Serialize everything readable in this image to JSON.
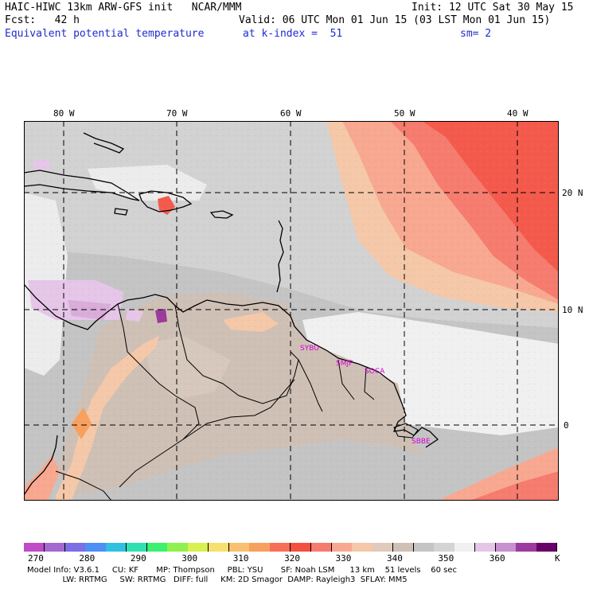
{
  "header": {
    "line1_left": "HAIC-HIWC 13km ARW-GFS init   NCAR/MMM",
    "line1_right": "Init: 12 UTC Sat 30 May 15",
    "line2_left": "Fcst:   42 h",
    "line2_right": "Valid: 06 UTC Mon 01 Jun 15 (03 LST Mon 01 Jun 15)",
    "line3_left": "Equivalent potential temperature",
    "line3_mid": "at k-index =  51",
    "line3_right": "sm= 2"
  },
  "axes": {
    "lon_labels": [
      "80 W",
      "70 W",
      "60 W",
      "50 W",
      "40 W"
    ],
    "lat_labels": [
      "20 N",
      "10 N",
      "0"
    ]
  },
  "stations": [
    "SYBU",
    "SMJP",
    "SOCA",
    "SBBE"
  ],
  "colorbar": {
    "unit": "K",
    "labels": [
      "270",
      "280",
      "290",
      "300",
      "310",
      "320",
      "330",
      "340",
      "350",
      "360"
    ],
    "colors": [
      "#c04bc6",
      "#a468d0",
      "#7c6ee4",
      "#4d8ff2",
      "#32c0e0",
      "#30e0b0",
      "#3cf070",
      "#90f050",
      "#d8f050",
      "#f6e070",
      "#f8c070",
      "#f8a060",
      "#f87058",
      "#f45040",
      "#f57c6e",
      "#f8a890",
      "#f4c8a8",
      "#e0cabc",
      "#cfc0b6",
      "#c4c4c4",
      "#d4d4d4",
      "#f0f0f0",
      "#e6c6e8",
      "#c790cf",
      "#9d3a9d",
      "#6a006a"
    ]
  },
  "model_info": {
    "line1": "Model Info: V3.6.1     CU: KF       MP: Thompson     PBL: YSU       SF: Noah LSM      13 km    51 levels    60 sec",
    "line2": "              LW: RRTMG     SW: RRTMG   DIFF: full     KM: 2D Smagor  DAMP: Rayleigh3  SFLAY: MM5"
  }
}
